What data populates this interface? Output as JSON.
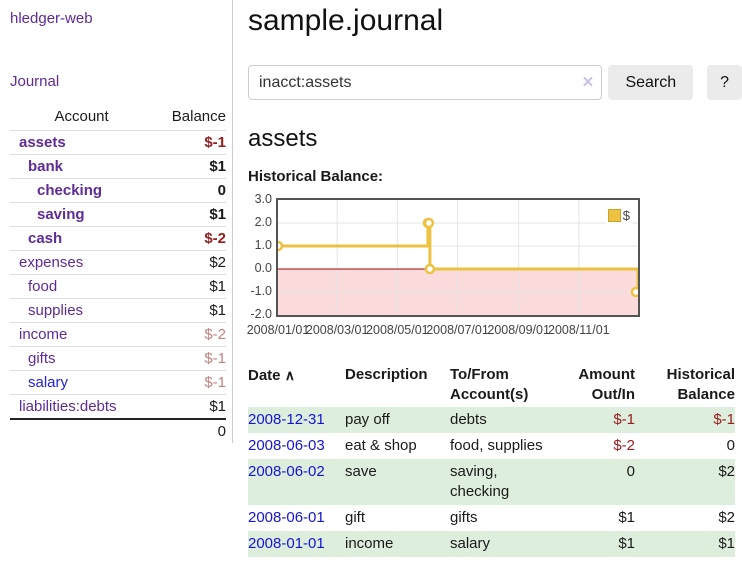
{
  "app": {
    "brand": "hledger-web",
    "nav_journal": "Journal"
  },
  "colors": {
    "link_purple": "#5e2b97",
    "link_blue": "#1515d6",
    "negative": "#971c1e",
    "negative_faded": "#c08381",
    "row_green": "#ddeedd",
    "chart_line": "#edc240",
    "chart_negative_area": "#fbdbdb",
    "chart_zero_line": "#9b0000"
  },
  "sidebar": {
    "account_header": "Account",
    "balance_header": "Balance",
    "rows": [
      {
        "account": "assets",
        "balance": "$-1",
        "indent": 1,
        "bold": true,
        "balance_class": "neg"
      },
      {
        "account": "bank",
        "balance": "$1",
        "indent": 2,
        "bold": true,
        "balance_class": ""
      },
      {
        "account": "checking",
        "balance": "0",
        "indent": 3,
        "bold": true,
        "balance_class": ""
      },
      {
        "account": "saving",
        "balance": "$1",
        "indent": 3,
        "bold": true,
        "balance_class": ""
      },
      {
        "account": "cash",
        "balance": "$-2",
        "indent": 2,
        "bold": true,
        "balance_class": "neg"
      },
      {
        "account": "expenses",
        "balance": "$2",
        "indent": 1,
        "bold": false,
        "balance_class": ""
      },
      {
        "account": "food",
        "balance": "$1",
        "indent": 2,
        "bold": false,
        "balance_class": ""
      },
      {
        "account": "supplies",
        "balance": "$1",
        "indent": 2,
        "bold": false,
        "balance_class": ""
      },
      {
        "account": "income",
        "balance": "$-2",
        "indent": 1,
        "bold": false,
        "balance_class": "neg-faded"
      },
      {
        "account": "gifts",
        "balance": "$-1",
        "indent": 2,
        "bold": false,
        "balance_class": "neg-faded"
      },
      {
        "account": "salary",
        "balance": "$-1",
        "indent": 2,
        "bold": false,
        "balance_class": "neg-faded",
        "link_blue": true
      },
      {
        "account": "liabilities:debts",
        "balance": "$1",
        "indent": 1,
        "bold": false,
        "balance_class": ""
      }
    ],
    "total": "0"
  },
  "header": {
    "title": "sample.journal"
  },
  "search": {
    "value": "inacct:assets",
    "clear_icon": "×",
    "search_button": "Search",
    "help_button": "?"
  },
  "content": {
    "account_title": "assets",
    "chart_label": "Historical Balance:"
  },
  "chart_data": {
    "type": "line",
    "style": "step",
    "title": "Historical Balance",
    "legend": "$",
    "legend_position": "top-right",
    "grid": true,
    "x_start": "2008-01-01",
    "x_end": "2008-12-31",
    "ylim": [
      -2.0,
      3.0
    ],
    "yticks": [
      3.0,
      2.0,
      1.0,
      0.0,
      -1.0,
      -2.0
    ],
    "ytick_labels": [
      "3.0",
      "2.0",
      "1.0",
      "0.0",
      "-1.0",
      "-2.0"
    ],
    "xtick_labels": [
      "2008/01/01",
      "2008/03/01",
      "2008/05/01",
      "2008/07/01",
      "2008/09/01",
      "2008/11/01"
    ],
    "xtick_dates": [
      "2008-01-01",
      "2008-03-01",
      "2008-05-01",
      "2008-07-01",
      "2008-09-01",
      "2008-11-01"
    ],
    "series": [
      {
        "name": "$",
        "points": [
          {
            "date": "2008-01-01",
            "value": 1
          },
          {
            "date": "2008-06-01",
            "value": 2
          },
          {
            "date": "2008-06-02",
            "value": 2
          },
          {
            "date": "2008-06-03",
            "value": 0
          },
          {
            "date": "2008-12-31",
            "value": -1
          }
        ]
      }
    ]
  },
  "register": {
    "headers": {
      "date": "Date",
      "description": "Description",
      "accounts": "To/From Account(s)",
      "amount": "Amount Out/In",
      "balance": "Historical Balance"
    },
    "sort_icon": "∧",
    "rows": [
      {
        "date": "2008-12-31",
        "description": "pay off",
        "accounts": "debts",
        "amount": "$-1",
        "balance": "$-1",
        "amount_class": "neg",
        "balance_class": "neg"
      },
      {
        "date": "2008-06-03",
        "description": "eat & shop",
        "accounts": "food, supplies",
        "amount": "$-2",
        "balance": "0",
        "amount_class": "neg",
        "balance_class": ""
      },
      {
        "date": "2008-06-02",
        "description": "save",
        "accounts": "saving, checking",
        "amount": "0",
        "balance": "$2",
        "amount_class": "",
        "balance_class": ""
      },
      {
        "date": "2008-06-01",
        "description": "gift",
        "accounts": "gifts",
        "amount": "$1",
        "balance": "$2",
        "amount_class": "",
        "balance_class": ""
      },
      {
        "date": "2008-01-01",
        "description": "income",
        "accounts": "salary",
        "amount": "$1",
        "balance": "$1",
        "amount_class": "",
        "balance_class": ""
      }
    ]
  }
}
